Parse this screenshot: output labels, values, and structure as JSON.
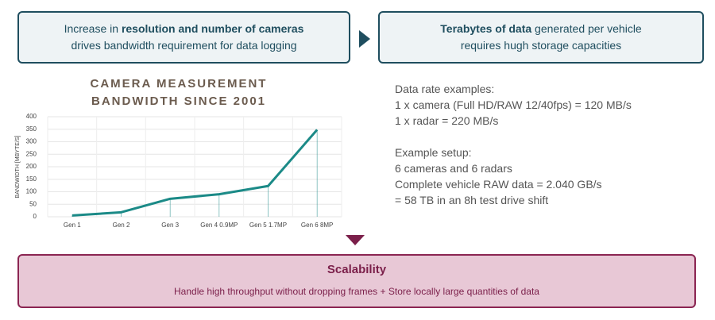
{
  "top_boxes": [
    {
      "lines": [
        [
          "Increase in ",
          "resolution and number of cameras"
        ],
        [
          "drives bandwidth requirement for data logging"
        ]
      ]
    },
    {
      "lines": [
        [
          "Terabytes of data",
          " generated per vehicle"
        ],
        [
          "requires hugh storage capacities"
        ]
      ]
    }
  ],
  "notes": [
    "Data rate examples:",
    "1 x camera (Full HD/RAW 12/40fps) = 120 MB/s",
    "1 x radar = 220 MB/s",
    "Example setup:",
    "6 cameras and 6 radars",
    "Complete vehicle RAW data = 2.040 GB/s",
    "= 58 TB in an 8h test drive shift"
  ],
  "bottom_box": {
    "title": "Scalability",
    "text": "Handle high throughput without dropping frames + Store locally large quantities of data"
  },
  "chart_data": {
    "type": "line",
    "title": "CAMERA MEASUREMENT BANDWIDTH SINCE 2001",
    "y_label": "BANDWIDTH [MBYTE/S]",
    "categories": [
      "Gen 1",
      "Gen 2",
      "Gen 3",
      "Gen 4  0.9MP",
      "Gen 5  1.7MP",
      "Gen 6  8MP"
    ],
    "values": [
      5,
      18,
      72,
      90,
      123,
      348
    ],
    "color": "#1b8a87",
    "ylim": [
      0,
      400
    ],
    "yticks": [
      0,
      50,
      100,
      150,
      200,
      250,
      300,
      350,
      400
    ],
    "grid": true
  }
}
